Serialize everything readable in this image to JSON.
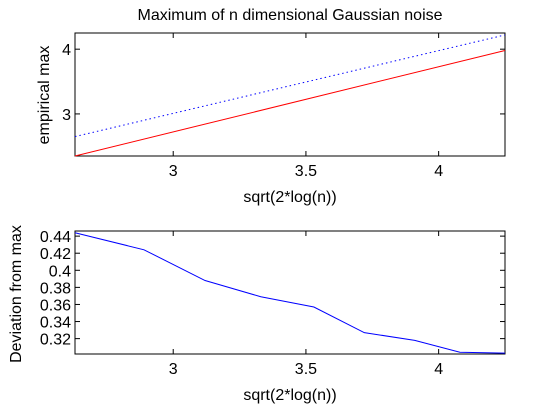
{
  "chart_data": [
    {
      "type": "line",
      "title": "Maximum of n dimensional Gaussian noise",
      "xlabel": "sqrt(2*log(n))",
      "ylabel": "empirical max",
      "xlim": [
        2.63,
        4.25
      ],
      "ylim": [
        2.35,
        4.25
      ],
      "xticks": [
        3,
        3.5,
        4
      ],
      "xtick_labels": [
        "3",
        "3.5",
        "4"
      ],
      "yticks": [
        3,
        4
      ],
      "ytick_labels": [
        "3",
        "4"
      ],
      "grid": false,
      "series": [
        {
          "style": "solid",
          "color": "#ff0000",
          "x": [
            2.63,
            4.25
          ],
          "y": [
            2.35,
            3.98
          ]
        },
        {
          "style": "dotted",
          "color": "#0000ff",
          "x": [
            2.63,
            4.25
          ],
          "y": [
            2.65,
            4.22
          ]
        }
      ]
    },
    {
      "type": "line",
      "title": "",
      "xlabel": "sqrt(2*log(n))",
      "ylabel": "Deviation from max",
      "xlim": [
        2.63,
        4.25
      ],
      "ylim": [
        0.302,
        0.446
      ],
      "xticks": [
        3,
        3.5,
        4
      ],
      "xtick_labels": [
        "3",
        "3.5",
        "4"
      ],
      "yticks": [
        0.32,
        0.34,
        0.36,
        0.38,
        0.4,
        0.42,
        0.44
      ],
      "ytick_labels": [
        "0.32",
        "0.34",
        "0.36",
        "0.38",
        "0.4",
        "0.42",
        "0.44"
      ],
      "grid": false,
      "series": [
        {
          "style": "solid",
          "color": "#0000ff",
          "x": [
            2.63,
            2.89,
            3.12,
            3.33,
            3.53,
            3.72,
            3.91,
            4.08,
            4.25
          ],
          "y": [
            0.444,
            0.424,
            0.388,
            0.369,
            0.357,
            0.327,
            0.318,
            0.304,
            0.303
          ]
        }
      ]
    }
  ]
}
